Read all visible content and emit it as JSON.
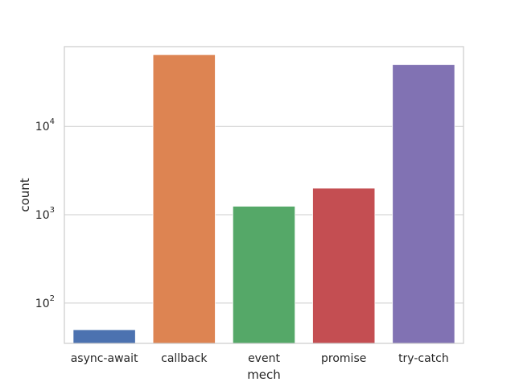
{
  "chart_data": {
    "type": "bar",
    "title": "",
    "xlabel": "mech",
    "ylabel": "count",
    "yscale": "log",
    "ylim": [
      35,
      80000
    ],
    "grid": "horizontal",
    "legend": "none",
    "categories": [
      "async-await",
      "callback",
      "event",
      "promise",
      "try-catch"
    ],
    "values": [
      50,
      65000,
      1250,
      2000,
      50000
    ],
    "colors": [
      "#4c72b0",
      "#dd8452",
      "#55a868",
      "#c44e52",
      "#8172b3"
    ],
    "y_ticks": [
      {
        "value": 100,
        "base": "10",
        "exp": "2"
      },
      {
        "value": 1000,
        "base": "10",
        "exp": "3"
      },
      {
        "value": 10000,
        "base": "10",
        "exp": "4"
      }
    ]
  }
}
